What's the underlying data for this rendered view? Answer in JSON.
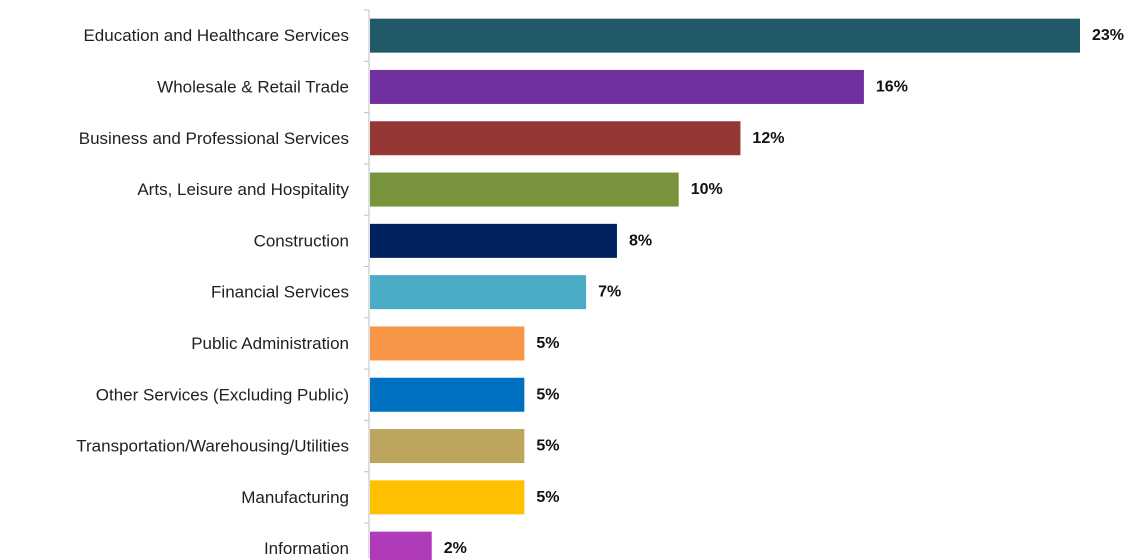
{
  "chart_data": {
    "type": "bar",
    "orientation": "horizontal",
    "categories": [
      "Education and Healthcare Services",
      "Wholesale & Retail Trade",
      "Business and Professional Services",
      "Arts, Leisure and Hospitality",
      "Construction",
      "Financial Services",
      "Public Administration",
      "Other Services (Excluding Public)",
      "Transportation/Warehousing/Utilities",
      "Manufacturing",
      "Information"
    ],
    "values": [
      23,
      16,
      12,
      10,
      8,
      7,
      5,
      5,
      5,
      5,
      2
    ],
    "value_labels": [
      "23%",
      "16%",
      "12%",
      "10%",
      "8%",
      "7%",
      "5%",
      "5%",
      "5%",
      "5%",
      "2%"
    ],
    "colors": [
      "#215968",
      "#7030A0",
      "#953735",
      "#77933C",
      "#002060",
      "#4BACC6",
      "#F79646",
      "#0070C0",
      "#BDA55D",
      "#FFC000",
      "#B03BB8"
    ],
    "title": "",
    "xlabel": "",
    "ylabel": "",
    "xlim": [
      0,
      23
    ],
    "grid": false,
    "legend": "none"
  }
}
